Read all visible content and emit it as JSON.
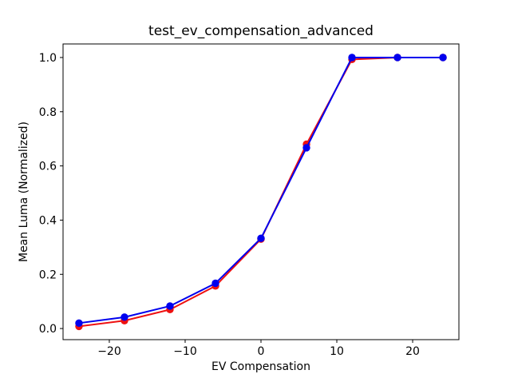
{
  "chart_data": {
    "type": "line",
    "title": "test_ev_compensation_advanced",
    "xlabel": "EV Compensation",
    "ylabel": "Mean Luma (Normalized)",
    "x": [
      -24,
      -18,
      -12,
      -6,
      0,
      6,
      12,
      18,
      24
    ],
    "series": [
      {
        "name": "red-series",
        "color": "#ee1111",
        "marker": "circle",
        "values": [
          0.008,
          0.029,
          0.07,
          0.157,
          0.33,
          0.68,
          0.993,
          1.0,
          1.0
        ]
      },
      {
        "name": "blue-series",
        "color": "#0000ee",
        "marker": "circle",
        "values": [
          0.02,
          0.042,
          0.083,
          0.167,
          0.333,
          0.667,
          1.0,
          1.0,
          1.0
        ]
      }
    ],
    "xticks": [
      -20,
      -10,
      0,
      10,
      20
    ],
    "yticks": [
      0.0,
      0.2,
      0.4,
      0.6,
      0.8,
      1.0
    ],
    "xlim": [
      -26.1,
      26.1
    ],
    "ylim": [
      -0.041,
      1.05
    ],
    "grid": false,
    "legend": null,
    "axis_color": "#000000",
    "background": "#ffffff"
  }
}
